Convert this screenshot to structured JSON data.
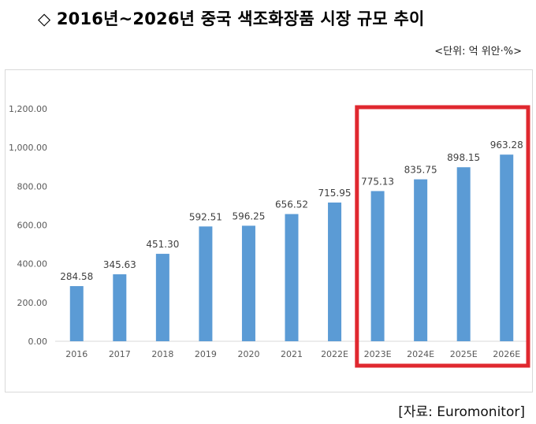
{
  "header": {
    "title": "◇ 2016년~2026년 중국 색조화장품 시장 규모 추이",
    "unit": "<단위: 억 위안·%>"
  },
  "footer": {
    "source": "[자료: Euromonitor]"
  },
  "colors": {
    "bar": "#5B9BD5",
    "highlight_box": "#E0282F",
    "axis_text": "#595959",
    "gridline": "#D9D9D9"
  },
  "chart_data": {
    "type": "bar",
    "title": "",
    "xlabel": "",
    "ylabel": "",
    "ylim": [
      0,
      1200
    ],
    "yticks": [
      "0.00",
      "200.00",
      "400.00",
      "600.00",
      "800.00",
      "1,000.00",
      "1,200.00"
    ],
    "categories": [
      "2016",
      "2017",
      "2018",
      "2019",
      "2020",
      "2021",
      "2022E",
      "2023E",
      "2024E",
      "2025E",
      "2026E"
    ],
    "values": [
      284.58,
      345.63,
      451.3,
      592.51,
      596.25,
      656.52,
      715.95,
      775.13,
      835.75,
      898.15,
      963.28
    ],
    "data_labels": [
      "284.58",
      "345.63",
      "451.30",
      "592.51",
      "596.25",
      "656.52",
      "715.95",
      "775.13",
      "835.75",
      "898.15",
      "963.28"
    ],
    "grid": false,
    "legend": "none",
    "highlighted_categories": [
      "2023E",
      "2024E",
      "2025E",
      "2026E"
    ]
  }
}
